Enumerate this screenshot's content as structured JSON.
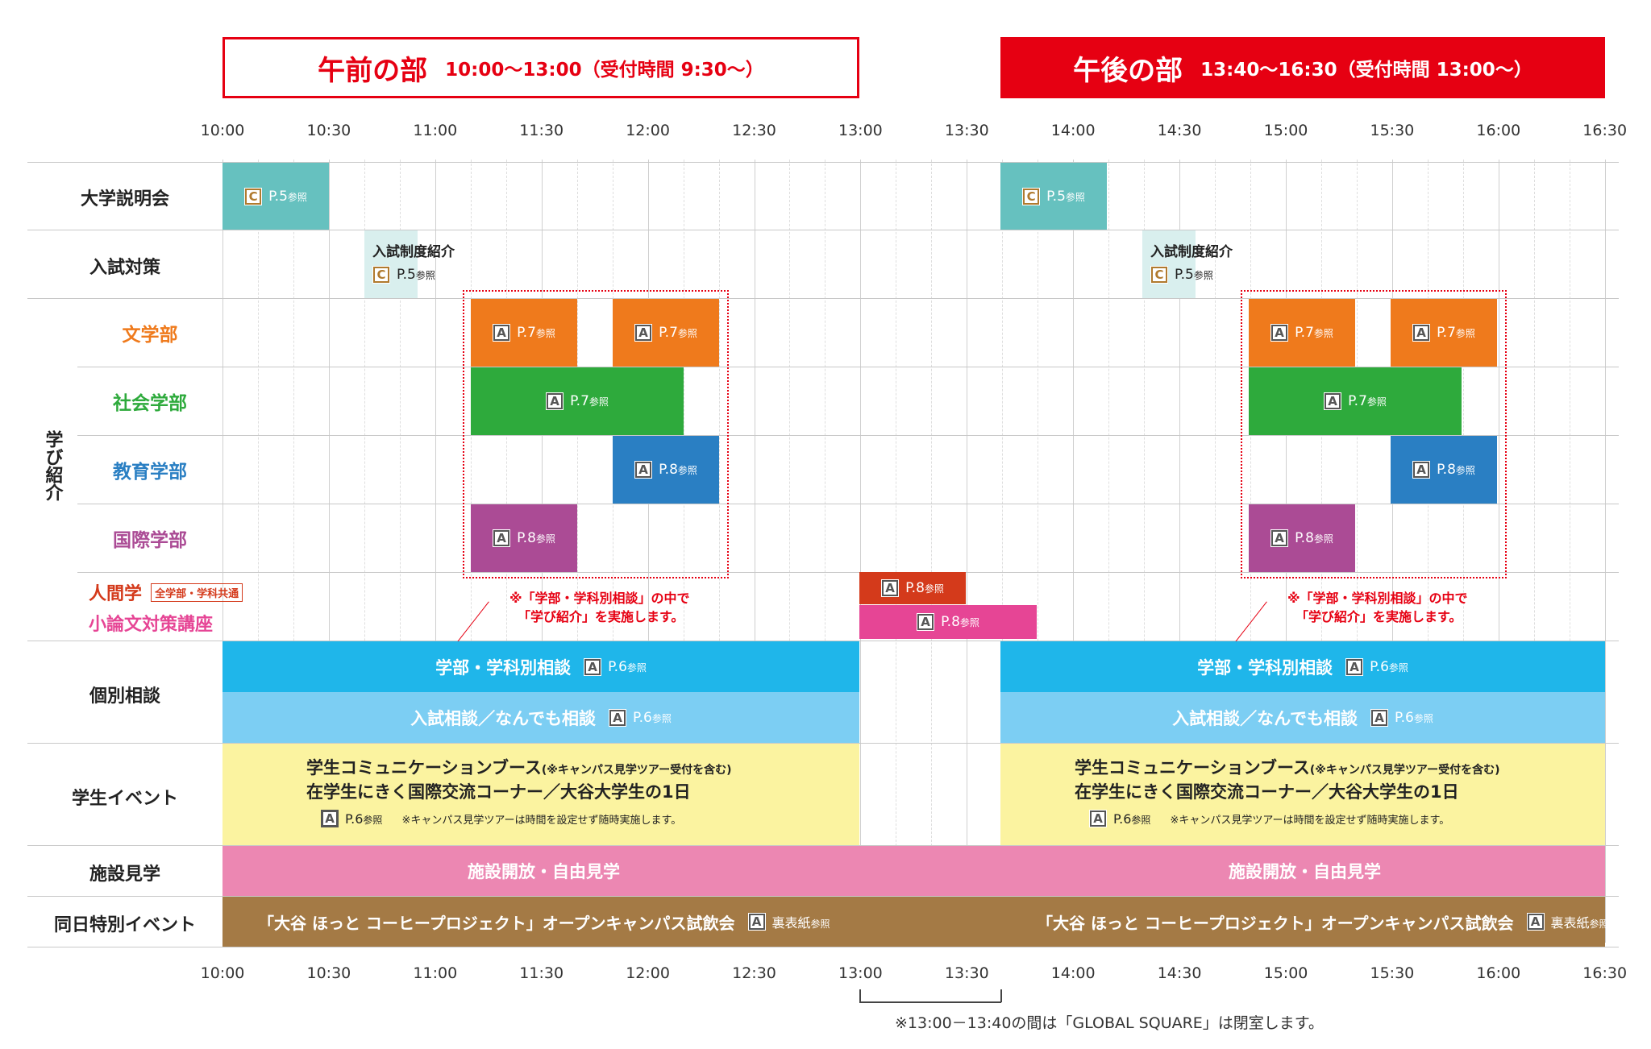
{
  "header": {
    "am": {
      "title": "午前の部",
      "time": "10:00〜13:00（受付時間 9:30〜）"
    },
    "pm": {
      "title": "午後の部",
      "time": "13:40〜16:30（受付時間 13:00〜）"
    }
  },
  "timeline": {
    "ticks": [
      "10:00",
      "10:30",
      "11:00",
      "11:30",
      "12:00",
      "12:30",
      "13:00",
      "13:30",
      "14:00",
      "14:30",
      "15:00",
      "15:30",
      "16:00",
      "16:30"
    ]
  },
  "rows": {
    "daigaku": "大学説明会",
    "nyushi": "入試対策",
    "manabi": "学び紹介",
    "bungaku": "文学部",
    "shakai": "社会学部",
    "kyoiku": "教育学部",
    "kokusai": "国際学部",
    "ningen": "人間学",
    "ningen_tag": "全学部・学科共通",
    "shoronbun": "小論文対策講座",
    "kobetsu": "個別相談",
    "gakusei": "学生イベント",
    "shisetsu": "施設見学",
    "dojitsu": "同日特別イベント"
  },
  "badges": {
    "c": "C",
    "a": "A"
  },
  "refs": {
    "p5": "P.5",
    "p6": "P.6",
    "p7": "P.7",
    "p8": "P.8",
    "sansho": "参照",
    "urabyoshi": "裏表紙"
  },
  "blocks": {
    "nyushi_label": "入試制度紹介",
    "consult1": "学部・学科別相談",
    "consult2": "入試相談／なんでも相談",
    "event_line1": "学生コミュニケーションブース",
    "event_line1_note": "(※キャンパス見学ツアー受付を含む)",
    "event_line2": "在学生にきく国際交流コーナー／大谷大学生の1日",
    "event_note": "※キャンパス見学ツアーは時間を設定せず随時実施します。",
    "shisetsu_label": "施設開放・自由見学",
    "coffee_label": "「大谷 ほっと コーヒープロジェクト」オープンキャンパス試飲会"
  },
  "notes": {
    "manabi_line1": "※「学部・学科別相談」の中で",
    "manabi_line2": "「学び紹介」を実施します。",
    "closed": "※13:00－13:40の間は「GLOBAL SQUARE」は閉室します。"
  },
  "colors": {
    "red": "#e60012",
    "teal": "#66c1bf",
    "pale_teal": "#d9efee",
    "orange": "#ef7a1c",
    "green": "#2eaa3c",
    "blue": "#2a7fc3",
    "purple": "#ab4b95",
    "ningen_red": "#d43a1b",
    "pink": "#e64595",
    "sky": "#1fb6ea",
    "light_sky": "#7ccef3",
    "yellow": "#fbf3a0",
    "facility_pink": "#ec87b2",
    "brown": "#a47a45"
  }
}
